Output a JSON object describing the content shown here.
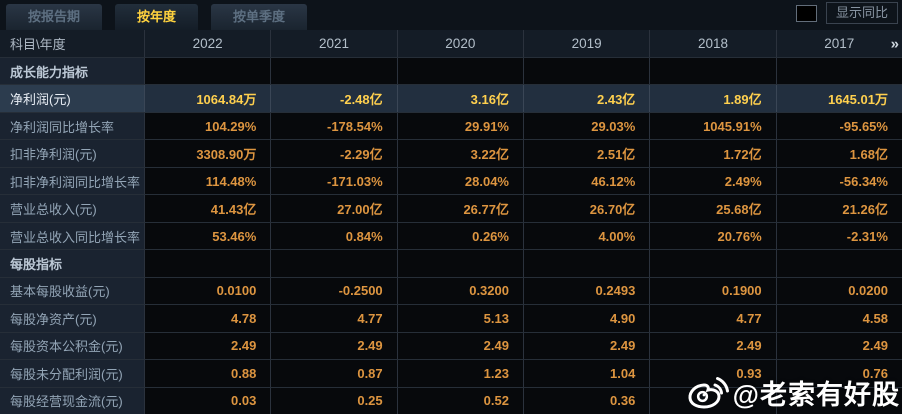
{
  "tabs": [
    {
      "label": "按报告期",
      "active": false
    },
    {
      "label": "按年度",
      "active": true
    },
    {
      "label": "按单季度",
      "active": false
    }
  ],
  "controls": {
    "show_yoy_label": "显示同比",
    "show_yoy_checked": false
  },
  "table": {
    "corner_label": "科目\\年度",
    "years": [
      "2022",
      "2021",
      "2020",
      "2019",
      "2018",
      "2017"
    ],
    "more_icon": "»",
    "rows": [
      {
        "label": "成长能力指标",
        "type": "section",
        "values": [
          "",
          "",
          "",
          "",
          "",
          ""
        ]
      },
      {
        "label": "净利润(元)",
        "type": "data",
        "highlight": true,
        "values": [
          "1064.84万",
          "-2.48亿",
          "3.16亿",
          "2.43亿",
          "1.89亿",
          "1645.01万"
        ]
      },
      {
        "label": "净利润同比增长率",
        "type": "data",
        "values": [
          "104.29%",
          "-178.54%",
          "29.91%",
          "29.03%",
          "1045.91%",
          "-95.65%"
        ]
      },
      {
        "label": "扣非净利润(元)",
        "type": "data",
        "values": [
          "3308.90万",
          "-2.29亿",
          "3.22亿",
          "2.51亿",
          "1.72亿",
          "1.68亿"
        ]
      },
      {
        "label": "扣非净利润同比增长率",
        "type": "data",
        "values": [
          "114.48%",
          "-171.03%",
          "28.04%",
          "46.12%",
          "2.49%",
          "-56.34%"
        ]
      },
      {
        "label": "营业总收入(元)",
        "type": "data",
        "values": [
          "41.43亿",
          "27.00亿",
          "26.77亿",
          "26.70亿",
          "25.68亿",
          "21.26亿"
        ]
      },
      {
        "label": "营业总收入同比增长率",
        "type": "data",
        "values": [
          "53.46%",
          "0.84%",
          "0.26%",
          "4.00%",
          "20.76%",
          "-2.31%"
        ]
      },
      {
        "label": "每股指标",
        "type": "section",
        "values": [
          "",
          "",
          "",
          "",
          "",
          ""
        ]
      },
      {
        "label": "基本每股收益(元)",
        "type": "data",
        "values": [
          "0.0100",
          "-0.2500",
          "0.3200",
          "0.2493",
          "0.1900",
          "0.0200"
        ]
      },
      {
        "label": "每股净资产(元)",
        "type": "data",
        "values": [
          "4.78",
          "4.77",
          "5.13",
          "4.90",
          "4.77",
          "4.58"
        ]
      },
      {
        "label": "每股资本公积金(元)",
        "type": "data",
        "values": [
          "2.49",
          "2.49",
          "2.49",
          "2.49",
          "2.49",
          "2.49"
        ]
      },
      {
        "label": "每股未分配利润(元)",
        "type": "data",
        "values": [
          "0.88",
          "0.87",
          "1.23",
          "1.04",
          "0.93",
          "0.76"
        ]
      },
      {
        "label": "每股经营现金流(元)",
        "type": "data",
        "values": [
          "0.03",
          "0.25",
          "0.52",
          "0.36",
          "",
          ""
        ]
      }
    ]
  },
  "watermark": {
    "handle": "@老索有好股"
  },
  "colors": {
    "tab_active_text": "#ffd23e",
    "value_text": "#dd9540",
    "highlight_value_text": "#ffd04e"
  }
}
